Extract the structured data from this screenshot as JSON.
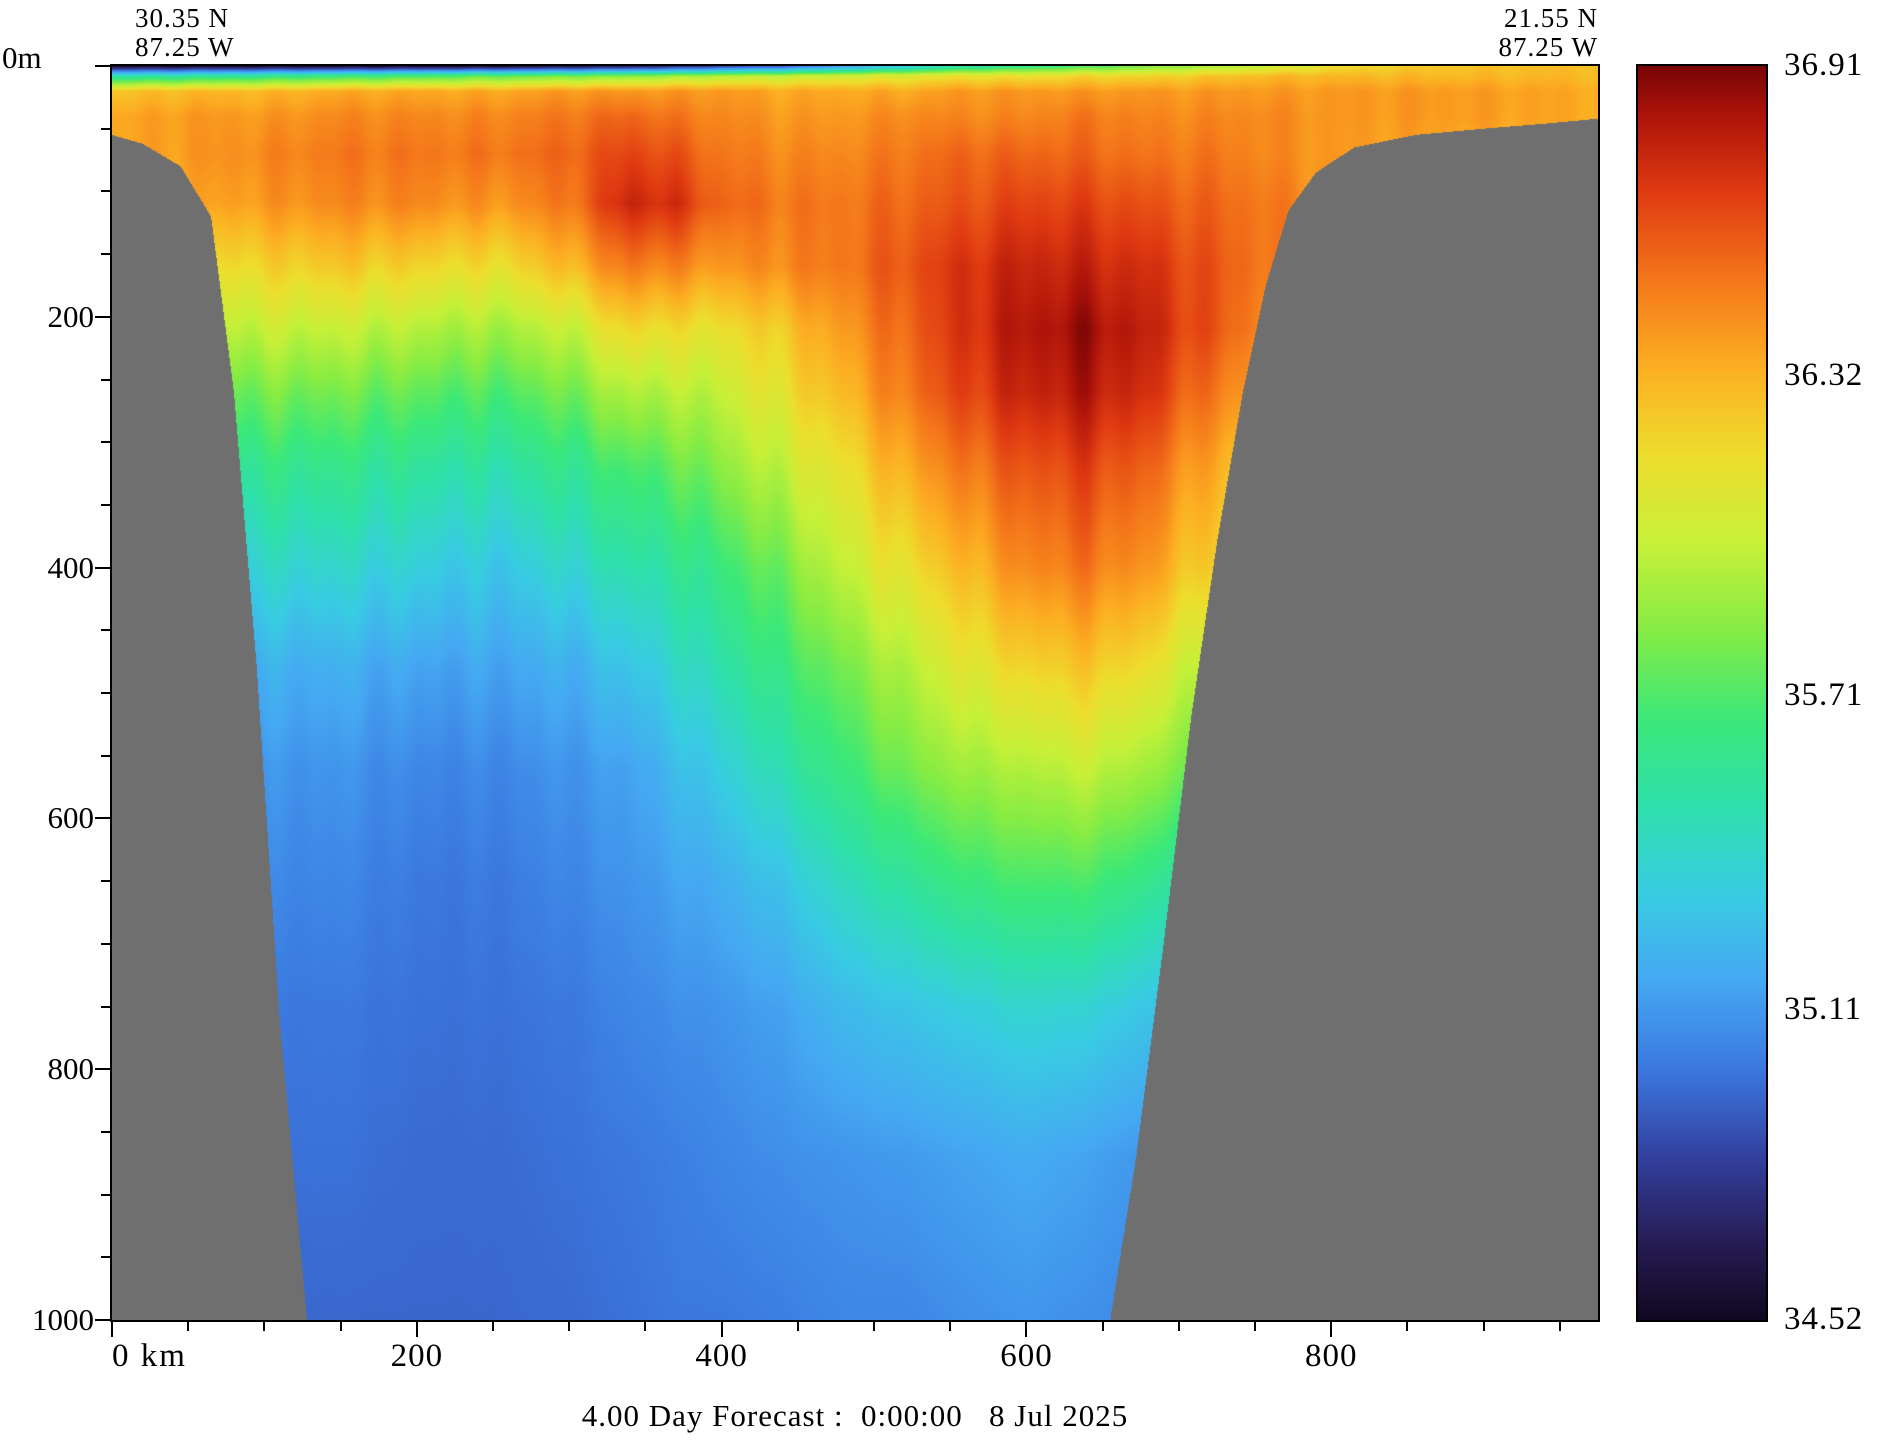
{
  "chart_data": {
    "type": "heatmap",
    "title": "4.00 Day Forecast :  0:00:00   8 Jul 2025",
    "x_max": 975,
    "y_max": 1000,
    "x_ticks": [
      0,
      200,
      400,
      600,
      800
    ],
    "x_tick_labels": [
      "0 km",
      "200",
      "400",
      "600",
      "800"
    ],
    "x_minor_step": 50,
    "y_ticks": [
      0,
      200,
      400,
      600,
      800,
      1000
    ],
    "y_tick_labels": [
      "0m",
      "200",
      "400",
      "600",
      "800",
      "1000"
    ],
    "y_minor_step": 50,
    "section": {
      "start_lat": "30.35 N",
      "start_lon": "87.25 W",
      "end_lat": "21.55 N",
      "end_lon": "87.25 W"
    },
    "colorbar": {
      "min": 34.52,
      "max": 36.91,
      "ticks": [
        36.91,
        36.32,
        35.71,
        35.11,
        34.52
      ],
      "tick_labels": [
        "36.91",
        "36.32",
        "35.71",
        "35.11",
        "34.52"
      ],
      "stops": [
        [
          0.0,
          "#100820"
        ],
        [
          0.06,
          "#261b52"
        ],
        [
          0.13,
          "#33409e"
        ],
        [
          0.2,
          "#3b78e0"
        ],
        [
          0.27,
          "#45a8f2"
        ],
        [
          0.34,
          "#38cce2"
        ],
        [
          0.41,
          "#2fe0ac"
        ],
        [
          0.48,
          "#3ce878"
        ],
        [
          0.55,
          "#86ec44"
        ],
        [
          0.62,
          "#c8f038"
        ],
        [
          0.69,
          "#eedd2d"
        ],
        [
          0.76,
          "#fcae22"
        ],
        [
          0.83,
          "#f4761a"
        ],
        [
          0.9,
          "#df3a11"
        ],
        [
          0.96,
          "#ad1309"
        ],
        [
          1.0,
          "#760505"
        ]
      ]
    },
    "mask_color": "#6f6f6f",
    "bathymetry": [
      [
        0,
        55
      ],
      [
        20,
        62
      ],
      [
        45,
        80
      ],
      [
        65,
        120
      ],
      [
        80,
        260
      ],
      [
        95,
        480
      ],
      [
        110,
        760
      ],
      [
        128,
        1000
      ],
      [
        655,
        1000
      ],
      [
        672,
        870
      ],
      [
        690,
        700
      ],
      [
        708,
        520
      ],
      [
        725,
        380
      ],
      [
        742,
        260
      ],
      [
        757,
        175
      ],
      [
        772,
        115
      ],
      [
        790,
        85
      ],
      [
        815,
        65
      ],
      [
        855,
        55
      ],
      [
        900,
        50
      ],
      [
        940,
        46
      ],
      [
        975,
        42
      ]
    ],
    "grid": {
      "x_km": [
        0,
        50,
        100,
        150,
        200,
        250,
        300,
        340,
        370,
        400,
        440,
        480,
        520,
        560,
        600,
        640,
        680,
        720,
        760,
        800,
        870,
        975
      ],
      "depth_m": [
        0,
        8,
        20,
        40,
        70,
        110,
        160,
        210,
        260,
        320,
        400,
        480,
        560,
        650,
        750,
        870,
        1000
      ],
      "values": [
        [
          34.55,
          34.55,
          34.55,
          34.55,
          34.55,
          34.55,
          34.6,
          34.65,
          34.7,
          34.8,
          34.9,
          35.1,
          35.3,
          35.5,
          35.6,
          35.7,
          35.8,
          35.9,
          36.0,
          36.15,
          36.25,
          36.3
        ],
        [
          35.5,
          35.55,
          35.6,
          35.65,
          35.7,
          35.75,
          35.8,
          35.85,
          35.9,
          35.95,
          36.0,
          36.05,
          36.1,
          36.15,
          36.15,
          36.2,
          36.2,
          36.25,
          36.3,
          36.3,
          36.3,
          36.3
        ],
        [
          36.25,
          36.3,
          36.3,
          36.35,
          36.35,
          36.35,
          36.4,
          36.4,
          36.4,
          36.4,
          36.35,
          36.35,
          36.35,
          36.4,
          36.4,
          36.4,
          36.4,
          36.4,
          36.4,
          36.4,
          36.4,
          36.35
        ],
        [
          36.35,
          36.4,
          36.4,
          36.45,
          36.45,
          36.45,
          36.5,
          36.55,
          36.5,
          36.45,
          36.4,
          36.4,
          36.45,
          36.45,
          36.45,
          36.5,
          36.45,
          36.45,
          36.45,
          36.4,
          36.4,
          36.35
        ],
        [
          36.35,
          36.4,
          36.45,
          36.5,
          36.5,
          36.5,
          36.55,
          36.65,
          36.6,
          36.5,
          36.45,
          36.45,
          36.5,
          36.55,
          36.55,
          36.55,
          36.5,
          36.5,
          36.45,
          36.4,
          36.35,
          36.3
        ],
        [
          36.3,
          36.35,
          36.4,
          36.45,
          36.45,
          36.4,
          36.5,
          36.75,
          36.7,
          36.55,
          36.5,
          36.5,
          36.55,
          36.6,
          36.65,
          36.65,
          36.6,
          36.55,
          36.5,
          36.4,
          36.3,
          36.3
        ],
        [
          36.1,
          36.15,
          36.2,
          36.25,
          36.2,
          36.15,
          36.3,
          36.5,
          36.45,
          36.4,
          36.45,
          36.5,
          36.6,
          36.7,
          36.75,
          36.75,
          36.7,
          36.6,
          36.5,
          36.4,
          36.3,
          36.3
        ],
        [
          35.9,
          35.95,
          36.0,
          36.0,
          35.95,
          35.9,
          36.0,
          36.2,
          36.15,
          36.15,
          36.25,
          36.4,
          36.55,
          36.7,
          36.8,
          36.85,
          36.75,
          36.6,
          36.45,
          36.35,
          36.3,
          36.3
        ],
        [
          35.7,
          35.75,
          35.8,
          35.8,
          35.75,
          35.7,
          35.8,
          35.95,
          35.95,
          36.0,
          36.15,
          36.3,
          36.5,
          36.65,
          36.75,
          36.8,
          36.7,
          36.5,
          36.35,
          36.3,
          36.3,
          36.3
        ],
        [
          35.5,
          35.55,
          35.6,
          35.6,
          35.55,
          35.5,
          35.6,
          35.7,
          35.75,
          35.85,
          36.0,
          36.15,
          36.35,
          36.5,
          36.6,
          36.65,
          36.55,
          36.35,
          36.2,
          36.15,
          36.1,
          36.1
        ],
        [
          35.3,
          35.35,
          35.4,
          35.4,
          35.35,
          35.3,
          35.4,
          35.5,
          35.55,
          35.65,
          35.8,
          36.0,
          36.15,
          36.3,
          36.45,
          36.5,
          36.4,
          36.2,
          36.05,
          36.0,
          36.0,
          36.0
        ],
        [
          35.2,
          35.2,
          35.2,
          35.2,
          35.15,
          35.15,
          35.2,
          35.3,
          35.4,
          35.5,
          35.65,
          35.8,
          35.95,
          36.1,
          36.2,
          36.25,
          36.15,
          35.95,
          35.85,
          35.8,
          35.8,
          35.8
        ],
        [
          35.1,
          35.1,
          35.1,
          35.1,
          35.05,
          35.05,
          35.1,
          35.15,
          35.25,
          35.35,
          35.5,
          35.65,
          35.8,
          35.9,
          35.95,
          36.0,
          35.9,
          35.75,
          35.6,
          35.55,
          35.55,
          35.55
        ],
        [
          35.05,
          35.05,
          35.05,
          35.05,
          35.0,
          35.0,
          35.05,
          35.1,
          35.15,
          35.2,
          35.3,
          35.45,
          35.55,
          35.65,
          35.7,
          35.7,
          35.6,
          35.45,
          35.35,
          35.3,
          35.3,
          35.3
        ],
        [
          35.0,
          35.0,
          35.0,
          35.0,
          34.98,
          34.98,
          35.0,
          35.05,
          35.08,
          35.1,
          35.15,
          35.25,
          35.3,
          35.35,
          35.4,
          35.38,
          35.3,
          35.2,
          35.15,
          35.12,
          35.12,
          35.12
        ],
        [
          34.98,
          34.98,
          34.98,
          34.98,
          34.96,
          34.96,
          34.98,
          35.0,
          35.02,
          35.05,
          35.08,
          35.1,
          35.12,
          35.15,
          35.18,
          35.15,
          35.1,
          35.05,
          35.05,
          35.05,
          35.05,
          35.05
        ],
        [
          34.95,
          34.95,
          34.95,
          34.95,
          34.95,
          34.95,
          34.96,
          34.98,
          35.0,
          35.0,
          35.02,
          35.05,
          35.05,
          35.08,
          35.1,
          35.08,
          35.05,
          35.0,
          35.0,
          35.0,
          35.0,
          35.0
        ]
      ]
    },
    "texture": {
      "amp": 0.05,
      "k1": 0.19,
      "k2": 0.047,
      "depth_center": 280,
      "depth_width": 330
    }
  }
}
